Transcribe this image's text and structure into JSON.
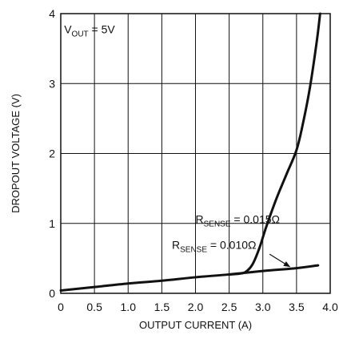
{
  "chart_data": {
    "type": "line",
    "title": "",
    "xlabel": "OUTPUT CURRENT (A)",
    "ylabel": "DROPOUT VOLTAGE (V)",
    "xlim": [
      0,
      4.0
    ],
    "ylim": [
      0,
      4
    ],
    "xticks": [
      "0",
      "0.5",
      "1.0",
      "1.5",
      "2.0",
      "2.5",
      "3.0",
      "3.5",
      "4.0"
    ],
    "yticks": [
      "0",
      "1",
      "2",
      "3",
      "4"
    ],
    "grid": true,
    "legend": "none",
    "line_color": "#111111",
    "condition": {
      "main": "V",
      "sub": "OUT",
      "rest": " = 5V"
    },
    "series": [
      {
        "name": "RSENSE = 0.010Ω",
        "label": {
          "main": "R",
          "sub": "SENSE",
          "rest": " = 0.010Ω"
        },
        "x": [
          0,
          0.5,
          1.0,
          1.5,
          2.0,
          2.5,
          3.0,
          3.5,
          3.82
        ],
        "y": [
          0.04,
          0.09,
          0.14,
          0.18,
          0.23,
          0.27,
          0.32,
          0.36,
          0.4
        ]
      },
      {
        "name": "RSENSE = 0.015Ω",
        "label": {
          "main": "R",
          "sub": "SENSE",
          "rest": " = 0.015Ω"
        },
        "x": [
          2.5,
          2.65,
          2.75,
          2.85,
          2.95,
          3.05,
          3.2,
          3.35,
          3.5,
          3.6,
          3.7,
          3.8,
          3.85
        ],
        "y": [
          0.27,
          0.28,
          0.31,
          0.42,
          0.65,
          0.95,
          1.35,
          1.7,
          2.05,
          2.45,
          2.95,
          3.6,
          4.0
        ]
      }
    ]
  }
}
